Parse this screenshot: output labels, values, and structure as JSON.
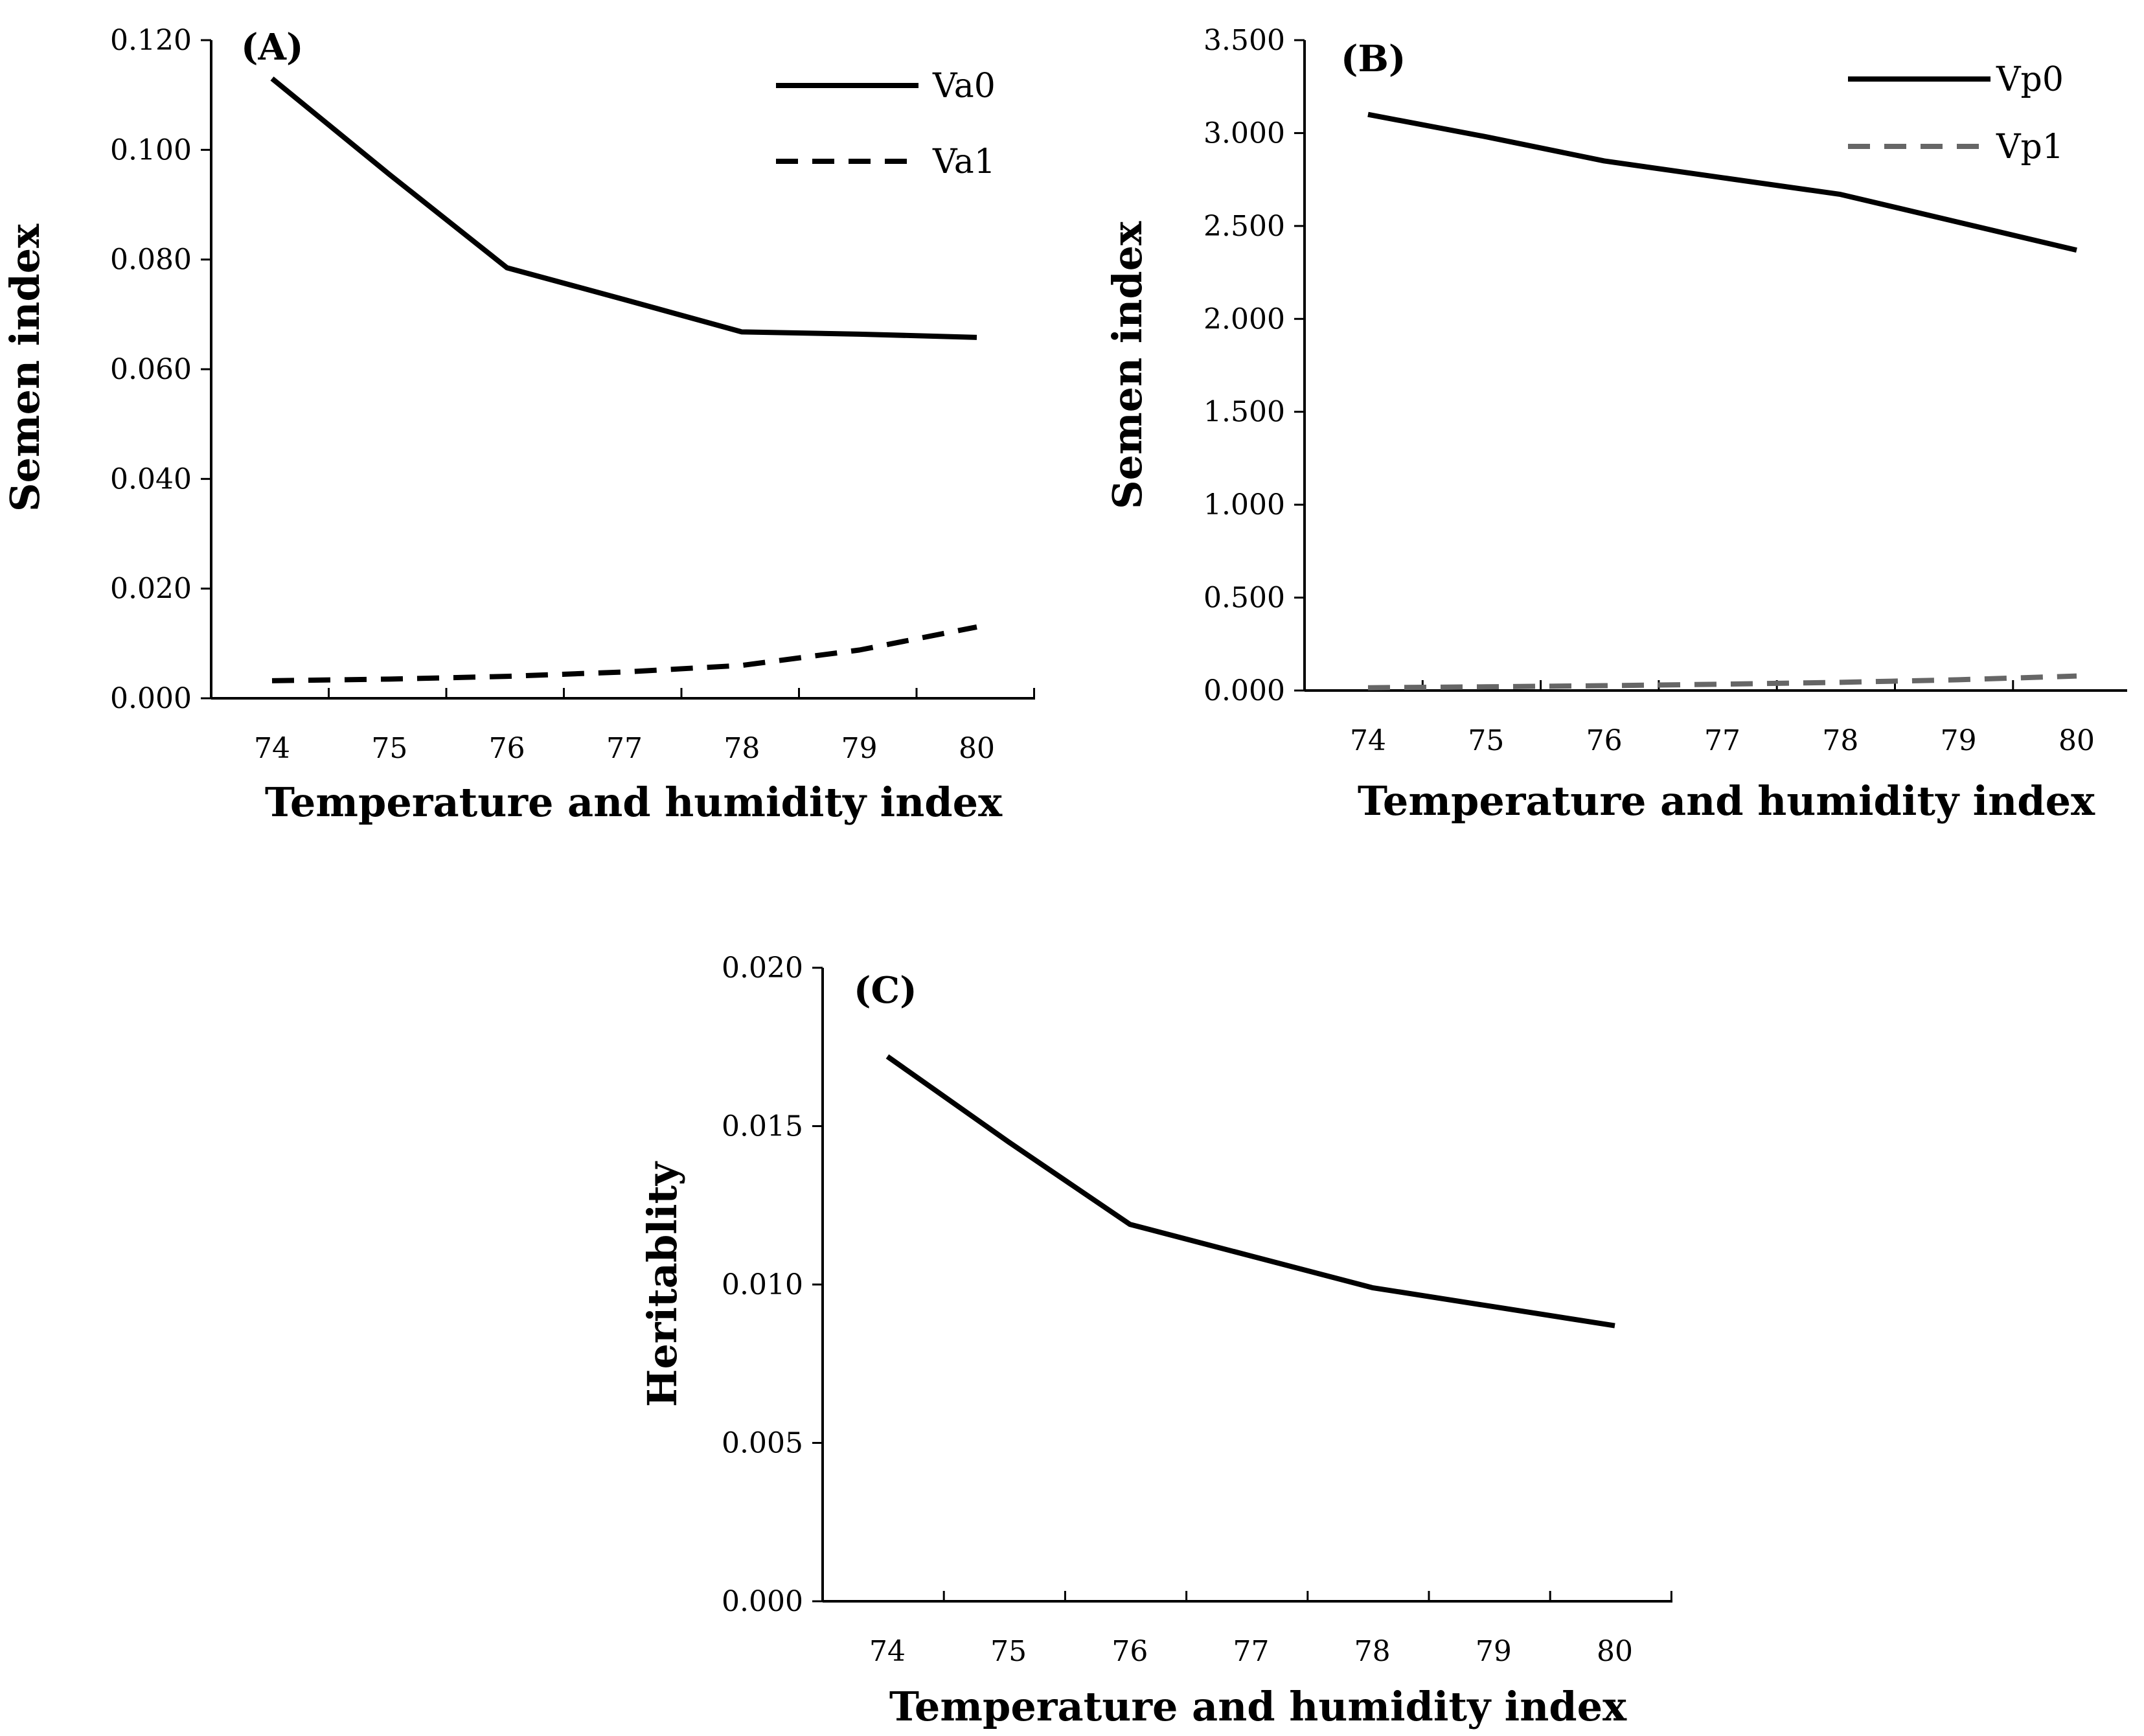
{
  "chart_data": [
    {
      "panel": "(A)",
      "type": "line",
      "x": [
        74,
        75,
        76,
        77,
        78,
        79,
        80
      ],
      "xlabel": "Temperature and humidity index",
      "ylabel": "Semen index",
      "ylim": [
        0,
        0.12
      ],
      "yticks": [
        "0.000",
        "0.020",
        "0.040",
        "0.060",
        "0.080",
        "0.100",
        "0.120"
      ],
      "ytick_values": [
        0,
        0.02,
        0.04,
        0.06,
        0.08,
        0.1,
        0.12
      ],
      "series": [
        {
          "name": "Va0",
          "values": [
            0.113,
            0.0955,
            0.0785,
            0.0727,
            0.0668,
            0.0664,
            0.0658
          ],
          "color": "#000000",
          "dash": "solid"
        },
        {
          "name": "Va1",
          "values": [
            0.0032,
            0.0035,
            0.004,
            0.0048,
            0.006,
            0.0088,
            0.013
          ],
          "color": "#000000",
          "dash": "dashed"
        }
      ],
      "legend_position": "top-right"
    },
    {
      "panel": "(B)",
      "type": "line",
      "x": [
        74,
        75,
        76,
        77,
        78,
        79,
        80
      ],
      "xlabel": "Temperature and humidity index",
      "ylabel": "Semen index",
      "ylim": [
        0,
        3.5
      ],
      "yticks": [
        "0.000",
        "0.500",
        "1.000",
        "1.500",
        "2.000",
        "2.500",
        "3.000",
        "3.500"
      ],
      "ytick_values": [
        0,
        0.5,
        1,
        1.5,
        2,
        2.5,
        3,
        3.5
      ],
      "series": [
        {
          "name": "Vp0",
          "values": [
            3.1,
            2.98,
            2.85,
            2.76,
            2.67,
            2.52,
            2.37
          ],
          "color": "#000000",
          "dash": "solid"
        },
        {
          "name": "Vp1",
          "values": [
            0.015,
            0.02,
            0.026,
            0.034,
            0.044,
            0.058,
            0.078
          ],
          "color": "#666666",
          "dash": "dashed"
        }
      ],
      "legend_position": "top-right"
    },
    {
      "panel": "(C)",
      "type": "line",
      "x": [
        74,
        75,
        76,
        77,
        78,
        79,
        80
      ],
      "xlabel": "Temperature and humidity index",
      "ylabel": "Heritablity",
      "ylim": [
        0,
        0.02
      ],
      "yticks": [
        "0.000",
        "0.005",
        "0.010",
        "0.015",
        "0.020"
      ],
      "ytick_values": [
        0,
        0.005,
        0.01,
        0.015,
        0.02
      ],
      "series": [
        {
          "name": "",
          "values": [
            0.0172,
            0.0145,
            0.0119,
            0.0109,
            0.0099,
            0.0093,
            0.0087
          ],
          "color": "#000000",
          "dash": "solid"
        }
      ],
      "legend_position": "none"
    }
  ]
}
